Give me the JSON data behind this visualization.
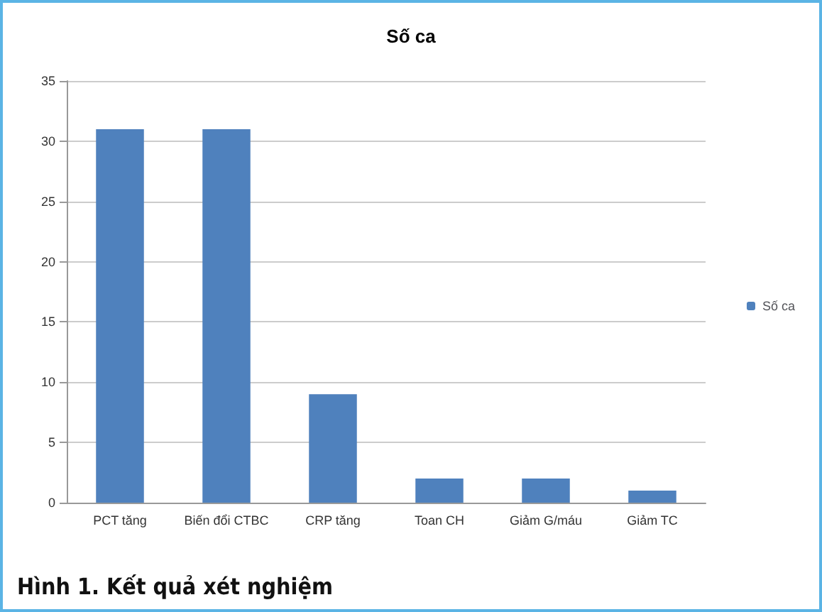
{
  "chart_data": {
    "type": "bar",
    "title": "Số ca",
    "categories": [
      "PCT tăng",
      "Biến đổi CTBC",
      "CRP tăng",
      "Toan CH",
      "Giảm G/máu",
      "Giảm TC"
    ],
    "series": [
      {
        "name": "Số ca",
        "color": "#4f81bd",
        "values": [
          31,
          31,
          9,
          2,
          2,
          1
        ]
      }
    ],
    "ylim": [
      0,
      35
    ],
    "yticks": [
      0,
      5,
      10,
      15,
      20,
      25,
      30,
      35
    ],
    "grid": "y",
    "legend": "right",
    "annotations": [
      "Hình 1. Kết quả xét nghiệm"
    ]
  }
}
